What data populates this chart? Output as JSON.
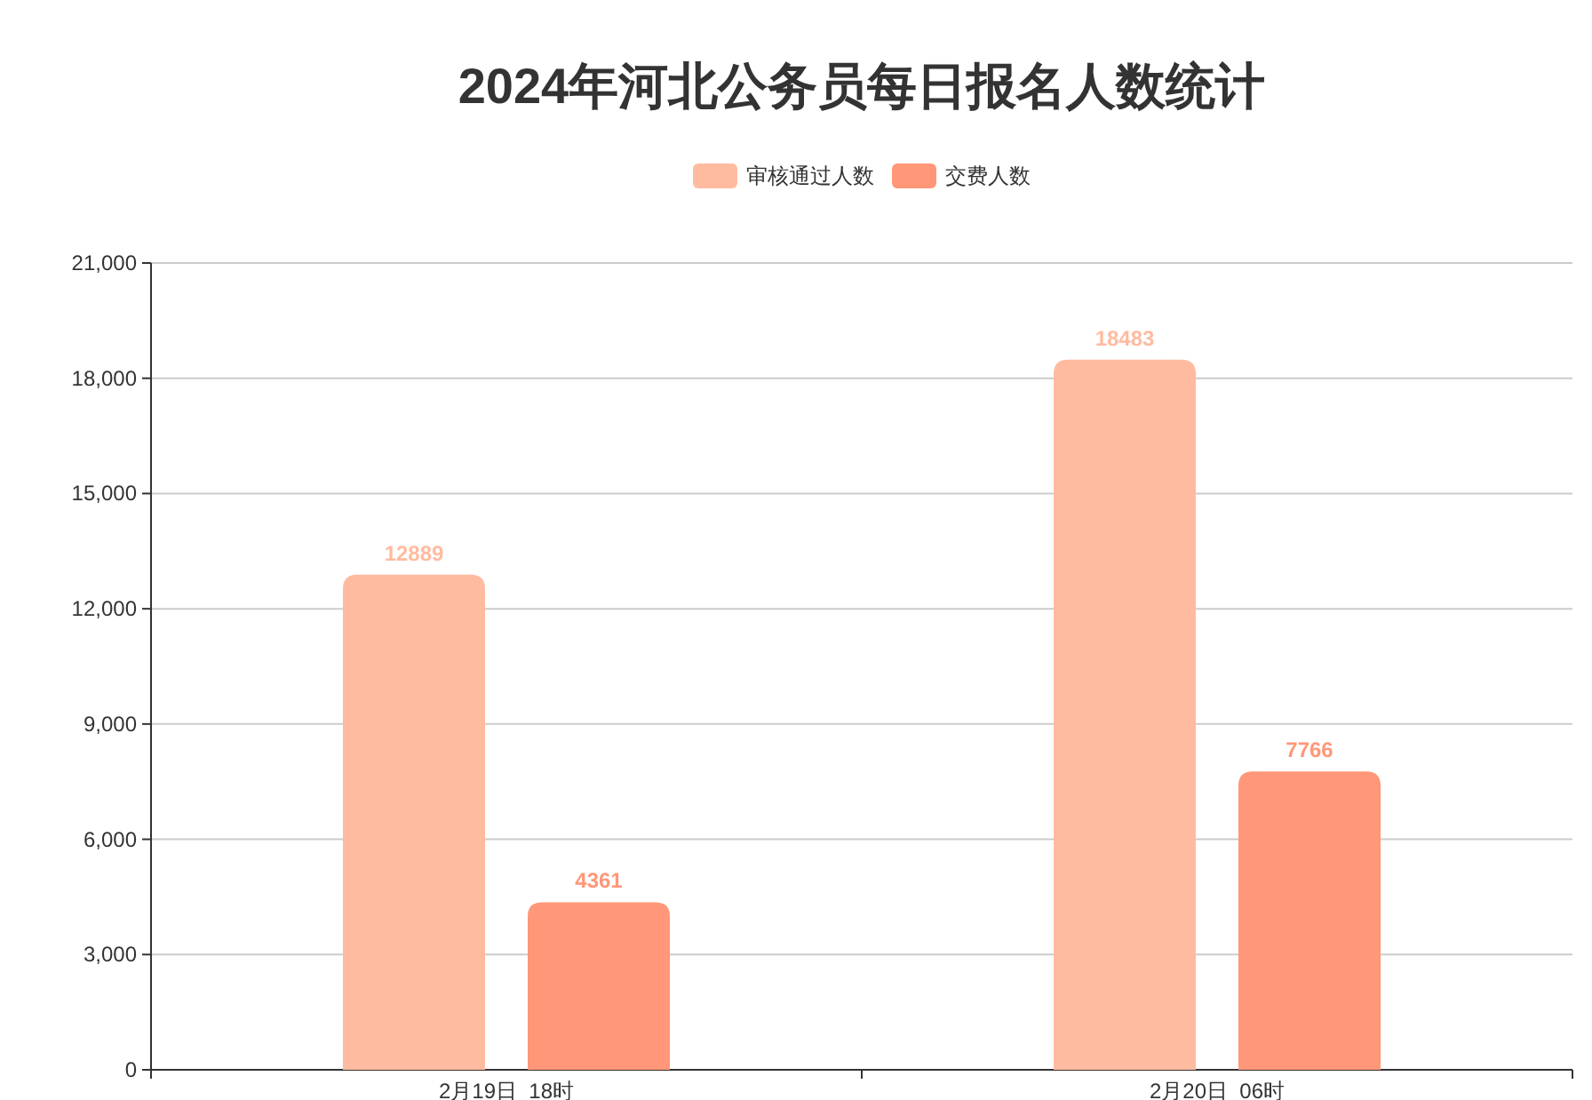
{
  "chart_data": {
    "type": "bar",
    "title": "2024年河北公务员每日报名人数统计",
    "categories": [
      "2月19日  18时",
      "2月20日  06时"
    ],
    "series": [
      {
        "name": "审核通过人数",
        "color": "#ffbb9f",
        "values": [
          12889,
          18483
        ]
      },
      {
        "name": "交费人数",
        "color": "#ff9778",
        "values": [
          4361,
          7766
        ]
      }
    ],
    "ylim": [
      0,
      21000
    ],
    "yticks": [
      0,
      {
        "value": 3000,
        "label": "3,000"
      },
      {
        "value": 6000,
        "label": "6,000"
      },
      {
        "value": 9000,
        "label": "9,000"
      },
      {
        "value": 12000,
        "label": "12,000"
      },
      {
        "value": 15000,
        "label": "15,000"
      },
      {
        "value": 18000,
        "label": "18,000"
      },
      {
        "value": 21000,
        "label": "21,000"
      }
    ],
    "grid": "y",
    "legend": "top",
    "data_labels": true
  }
}
